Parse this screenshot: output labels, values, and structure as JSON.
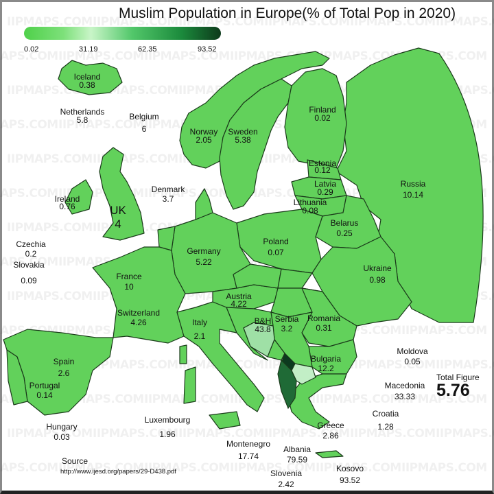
{
  "title": "Muslim Population in Europe(% of Total Pop in 2020)",
  "legend": {
    "ticks": [
      "0.02",
      "31.19",
      "62.35",
      "93.52"
    ],
    "colors": [
      "#4fd04a",
      "#c9f5c8",
      "#1b8a3c",
      "#0d3a1b"
    ]
  },
  "watermark": "IIPMAPS.COM",
  "colors": {
    "land": "#62d15b",
    "border": "#1a3a1a",
    "bh": "#9fe0a6",
    "macedonia": "#c2eec6",
    "albania": "#1f6a36",
    "kosovo": "#0c3a1f"
  },
  "countries": [
    {
      "name": "Iceland",
      "value": "0.38"
    },
    {
      "name": "Netherlands",
      "value": "5.8"
    },
    {
      "name": "Belgium",
      "value": "6"
    },
    {
      "name": "Denmark",
      "value": "3.7"
    },
    {
      "name": "Ireland",
      "value": "0.76"
    },
    {
      "name": "UK",
      "value": "4"
    },
    {
      "name": "Czechia",
      "value": "0.2"
    },
    {
      "name": "Slovakia",
      "value": "0.09"
    },
    {
      "name": "France",
      "value": "10"
    },
    {
      "name": "Switzerland",
      "value": "4.26"
    },
    {
      "name": "Spain",
      "value": "2.6"
    },
    {
      "name": "Portugal",
      "value": "0.14"
    },
    {
      "name": "Norway",
      "value": "2.05"
    },
    {
      "name": "Sweden",
      "value": "5.38"
    },
    {
      "name": "Finland",
      "value": "0.02"
    },
    {
      "name": "Estonia",
      "value": "0.12"
    },
    {
      "name": "Latvia",
      "value": "0.29"
    },
    {
      "name": "Lithuania",
      "value": "0.08"
    },
    {
      "name": "Russia",
      "value": "10.14"
    },
    {
      "name": "Belarus",
      "value": "0.25"
    },
    {
      "name": "Poland",
      "value": "0.07"
    },
    {
      "name": "Germany",
      "value": "5.22"
    },
    {
      "name": "Ukraine",
      "value": "0.98"
    },
    {
      "name": "Austria",
      "value": "4.22"
    },
    {
      "name": "Romania",
      "value": "0.31"
    },
    {
      "name": "Italy",
      "value": "2.1"
    },
    {
      "name": "B&H",
      "value": "43.8"
    },
    {
      "name": "Serbia",
      "value": "3.2"
    },
    {
      "name": "Bulgaria",
      "value": "12.2"
    },
    {
      "name": "Moldova",
      "value": "0.05"
    },
    {
      "name": "Macedonia",
      "value": "33.33"
    },
    {
      "name": "Croatia",
      "value": "1.28"
    },
    {
      "name": "Luxembourg",
      "value": "1.96"
    },
    {
      "name": "Hungary",
      "value": "0.03"
    },
    {
      "name": "Greece",
      "value": "2.86"
    },
    {
      "name": "Montenegro",
      "value": "17.74"
    },
    {
      "name": "Albania",
      "value": "79.59"
    },
    {
      "name": "Slovenia",
      "value": "2.42"
    },
    {
      "name": "Kosovo",
      "value": "93.52"
    }
  ],
  "total": {
    "label": "Total Figure",
    "value": "5.76"
  },
  "source": {
    "label": "Source",
    "url": "http://www.ijesd.org/papers/29-D438.pdf"
  }
}
